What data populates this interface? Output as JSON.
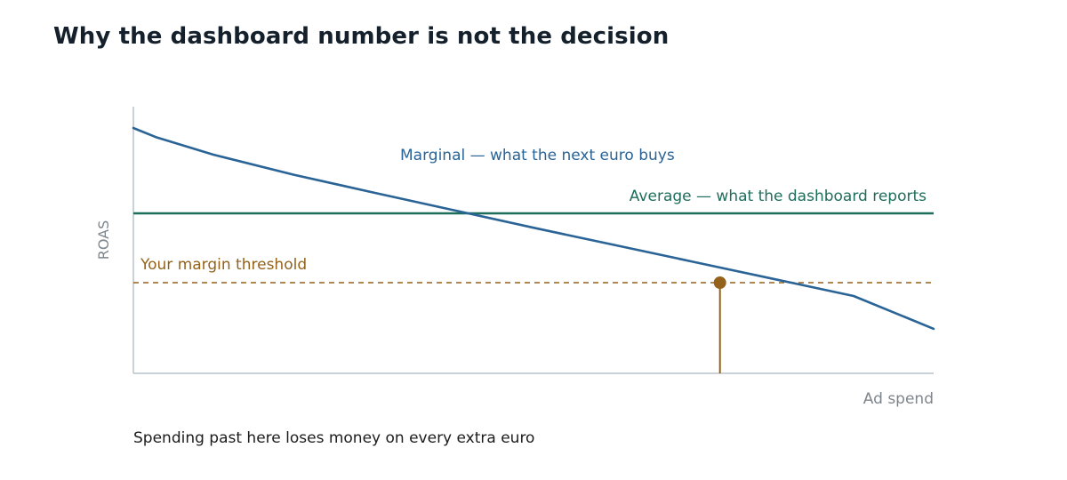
{
  "title": "Why the dashboard number is not the decision",
  "footnote": "Spending past here loses money on every extra euro",
  "colors": {
    "marginal": "#2a6496",
    "average": "#1f6e5c",
    "threshold": "#94621a",
    "axis": "#b9c3cb",
    "axis_label": "#7e868d"
  },
  "chart_data": {
    "type": "line",
    "xlabel": "Ad spend",
    "ylabel": "ROAS",
    "xlim": [
      0,
      100
    ],
    "ylim": [
      0,
      100
    ],
    "grid": false,
    "series": [
      {
        "name": "Marginal — what the next euro buys",
        "x": [
          0,
          2.8,
          10,
          20,
          30,
          40,
          50,
          60,
          70,
          80,
          90,
          100
        ],
        "y": [
          92,
          88.6,
          82,
          74.5,
          67.8,
          61.2,
          54.6,
          48.2,
          41.8,
          35.4,
          29,
          16.7
        ]
      },
      {
        "name": "Average — what the dashboard reports",
        "x": [
          0,
          100
        ],
        "y": [
          60,
          60
        ]
      },
      {
        "name": "Your margin threshold",
        "x": [
          0,
          100
        ],
        "y": [
          34,
          34
        ]
      }
    ],
    "marker": {
      "x": 73.3,
      "y": 34
    }
  }
}
